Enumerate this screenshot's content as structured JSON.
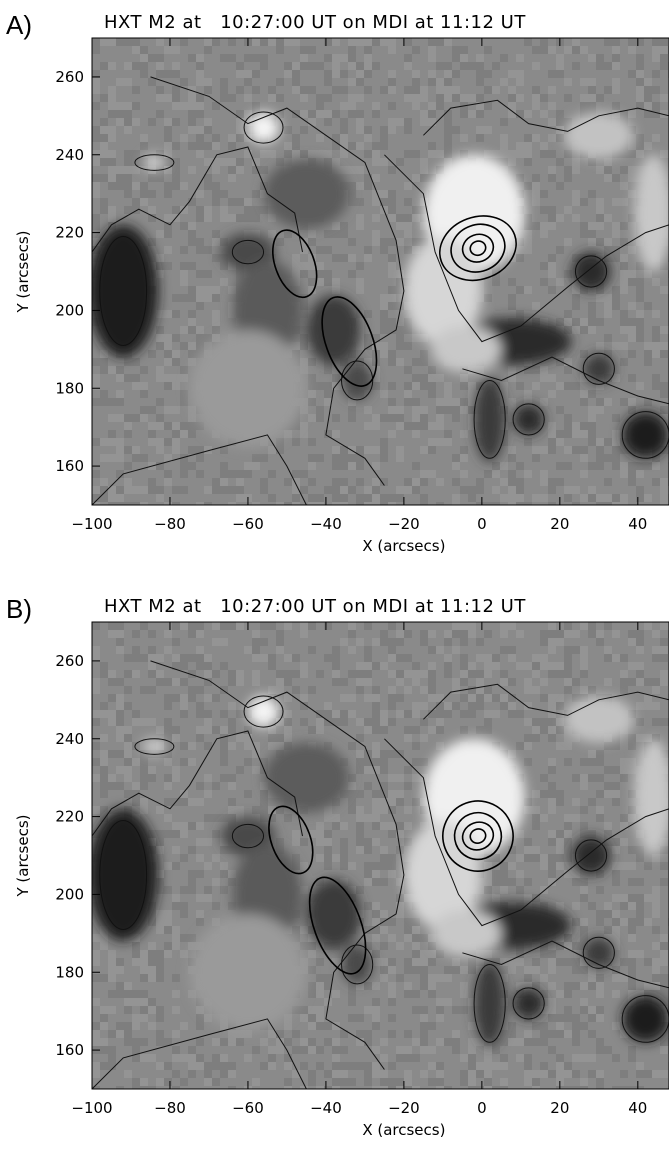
{
  "panels": [
    {
      "letter": "A)",
      "title": "HXT M2 at   10:27:00 UT on MDI at 11:12 UT"
    },
    {
      "letter": "B)",
      "title": "HXT M2 at   10:27:00 UT on MDI at 11:12 UT"
    }
  ],
  "chart_data": [
    {
      "type": "heatmap",
      "title": "HXT M2 at   10:27:00 UT on MDI at 11:12 UT",
      "xlabel": "X (arcsecs)",
      "ylabel": "Y (arcsecs)",
      "xlim": [
        -100,
        48
      ],
      "ylim": [
        150,
        270
      ],
      "xticks": [
        -100,
        -80,
        -60,
        -40,
        -20,
        0,
        20,
        40
      ],
      "yticks": [
        160,
        180,
        200,
        220,
        240,
        260
      ],
      "colormap": "grayscale magnetogram with overlaid contours"
    },
    {
      "type": "heatmap",
      "title": "HXT M2 at   10:27:00 UT on MDI at 11:12 UT",
      "xlabel": "X (arcsecs)",
      "ylabel": "Y (arcsecs)",
      "xlim": [
        -100,
        48
      ],
      "ylim": [
        150,
        270
      ],
      "xticks": [
        -100,
        -80,
        -60,
        -40,
        -20,
        0,
        20,
        40
      ],
      "yticks": [
        160,
        180,
        200,
        220,
        240,
        260
      ],
      "colormap": "grayscale magnetogram with overlaid contours"
    }
  ]
}
